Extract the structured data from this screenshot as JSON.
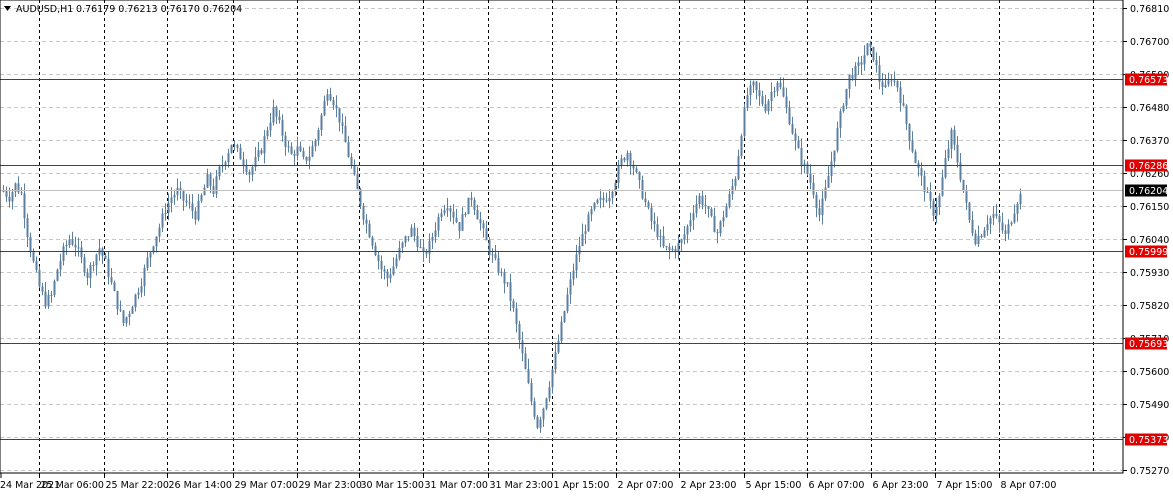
{
  "header": {
    "symbol_timeframe": "AUDUSD,H1",
    "ohlc": "0.76179 0.76213 0.76170 0.76204"
  },
  "colors": {
    "background": "#ffffff",
    "grid": "#c8c8c8",
    "candle": "#5b7fa0",
    "level_line": "#e00000",
    "level_label_bg": "#e00000",
    "price_label_bg": "#000000",
    "bid_line": "#c0c0c0"
  },
  "chart_data": {
    "type": "candlestick",
    "symbol": "AUDUSD",
    "timeframe": "H1",
    "ylim": [
      0.7527,
      0.7681
    ],
    "grid": true,
    "y_ticks": [
      "0.76810",
      "0.76700",
      "0.76590",
      "0.76480",
      "0.76370",
      "0.76260",
      "0.76150",
      "0.76040",
      "0.75930",
      "0.75820",
      "0.75710",
      "0.75600",
      "0.75490",
      "0.75380",
      "0.75270"
    ],
    "x_ticks": [
      "24 Mar 2021",
      "25 Mar 06:00",
      "25 Mar 22:00",
      "26 Mar 14:00",
      "29 Mar 07:00",
      "29 Mar 23:00",
      "30 Mar 15:00",
      "31 Mar 07:00",
      "31 Mar 23:00",
      "1 Apr 15:00",
      "2 Apr 07:00",
      "2 Apr 23:00",
      "5 Apr 15:00",
      "6 Apr 07:00",
      "6 Apr 23:00",
      "7 Apr 15:00",
      "8 Apr 07:00"
    ],
    "horizontal_levels": [
      "0.76573",
      "0.76286",
      "0.75999",
      "0.75693",
      "0.75373"
    ],
    "current_price": "0.76204",
    "path": [
      [
        0,
        0.762
      ],
      [
        2,
        0.7618
      ],
      [
        4,
        0.7622
      ],
      [
        6,
        0.7619
      ],
      [
        8,
        0.7606
      ],
      [
        10,
        0.7596
      ],
      [
        12,
        0.7588
      ],
      [
        14,
        0.7583
      ],
      [
        16,
        0.7585
      ],
      [
        18,
        0.7594
      ],
      [
        20,
        0.76
      ],
      [
        22,
        0.7604
      ],
      [
        24,
        0.7602
      ],
      [
        26,
        0.7597
      ],
      [
        28,
        0.7592
      ],
      [
        30,
        0.7597
      ],
      [
        32,
        0.7601
      ],
      [
        34,
        0.7596
      ],
      [
        36,
        0.7589
      ],
      [
        38,
        0.7582
      ],
      [
        40,
        0.7576
      ],
      [
        42,
        0.758
      ],
      [
        44,
        0.7585
      ],
      [
        46,
        0.759
      ],
      [
        48,
        0.7597
      ],
      [
        50,
        0.7603
      ],
      [
        52,
        0.7608
      ],
      [
        54,
        0.7614
      ],
      [
        56,
        0.7618
      ],
      [
        58,
        0.762
      ],
      [
        60,
        0.7617
      ],
      [
        62,
        0.7615
      ],
      [
        64,
        0.7612
      ],
      [
        66,
        0.7618
      ],
      [
        68,
        0.7624
      ],
      [
        70,
        0.762
      ],
      [
        72,
        0.7627
      ],
      [
        74,
        0.7631
      ],
      [
        76,
        0.7636
      ],
      [
        78,
        0.7633
      ],
      [
        80,
        0.763
      ],
      [
        82,
        0.7626
      ],
      [
        84,
        0.763
      ],
      [
        86,
        0.7634
      ],
      [
        88,
        0.7641
      ],
      [
        90,
        0.7647
      ],
      [
        92,
        0.7642
      ],
      [
        94,
        0.7636
      ],
      [
        96,
        0.7632
      ],
      [
        98,
        0.7634
      ],
      [
        100,
        0.763
      ],
      [
        102,
        0.7632
      ],
      [
        104,
        0.7637
      ],
      [
        106,
        0.7645
      ],
      [
        108,
        0.7654
      ],
      [
        110,
        0.765
      ],
      [
        112,
        0.7644
      ],
      [
        114,
        0.7636
      ],
      [
        116,
        0.7628
      ],
      [
        118,
        0.762
      ],
      [
        120,
        0.7612
      ],
      [
        122,
        0.7606
      ],
      [
        124,
        0.76
      ],
      [
        126,
        0.7594
      ],
      [
        128,
        0.7591
      ],
      [
        130,
        0.7595
      ],
      [
        132,
        0.76
      ],
      [
        134,
        0.7604
      ],
      [
        136,
        0.7607
      ],
      [
        138,
        0.7603
      ],
      [
        140,
        0.7598
      ],
      [
        142,
        0.7602
      ],
      [
        144,
        0.7608
      ],
      [
        146,
        0.7614
      ],
      [
        148,
        0.7616
      ],
      [
        150,
        0.7612
      ],
      [
        152,
        0.7608
      ],
      [
        154,
        0.7614
      ],
      [
        156,
        0.7618
      ],
      [
        158,
        0.7612
      ],
      [
        160,
        0.7606
      ],
      [
        162,
        0.76
      ],
      [
        164,
        0.7596
      ],
      [
        166,
        0.7592
      ],
      [
        168,
        0.7588
      ],
      [
        170,
        0.758
      ],
      [
        172,
        0.757
      ],
      [
        174,
        0.756
      ],
      [
        176,
        0.755
      ],
      [
        178,
        0.7542
      ],
      [
        180,
        0.7548
      ],
      [
        182,
        0.7556
      ],
      [
        184,
        0.7565
      ],
      [
        186,
        0.7575
      ],
      [
        188,
        0.7585
      ],
      [
        190,
        0.7594
      ],
      [
        192,
        0.7602
      ],
      [
        194,
        0.7608
      ],
      [
        196,
        0.7613
      ],
      [
        198,
        0.7616
      ],
      [
        200,
        0.7617
      ],
      [
        202,
        0.7619
      ],
      [
        204,
        0.7624
      ],
      [
        206,
        0.763
      ],
      [
        208,
        0.7633
      ],
      [
        210,
        0.7628
      ],
      [
        212,
        0.7622
      ],
      [
        214,
        0.7616
      ],
      [
        216,
        0.761
      ],
      [
        218,
        0.7606
      ],
      [
        220,
        0.7601
      ],
      [
        222,
        0.76
      ],
      [
        224,
        0.7601
      ],
      [
        226,
        0.7603
      ],
      [
        228,
        0.7608
      ],
      [
        230,
        0.7614
      ],
      [
        232,
        0.7618
      ],
      [
        234,
        0.7615
      ],
      [
        236,
        0.761
      ],
      [
        238,
        0.7606
      ],
      [
        240,
        0.7612
      ],
      [
        242,
        0.7618
      ],
      [
        244,
        0.7625
      ],
      [
        246,
        0.764
      ],
      [
        248,
        0.7652
      ],
      [
        250,
        0.7655
      ],
      [
        252,
        0.7651
      ],
      [
        254,
        0.7648
      ],
      [
        256,
        0.7653
      ],
      [
        258,
        0.7657
      ],
      [
        260,
        0.7651
      ],
      [
        262,
        0.7644
      ],
      [
        264,
        0.7636
      ],
      [
        266,
        0.763
      ],
      [
        268,
        0.7626
      ],
      [
        270,
        0.762
      ],
      [
        272,
        0.7612
      ],
      [
        274,
        0.762
      ],
      [
        276,
        0.763
      ],
      [
        278,
        0.764
      ],
      [
        280,
        0.765
      ],
      [
        282,
        0.7658
      ],
      [
        284,
        0.766
      ],
      [
        286,
        0.7663
      ],
      [
        288,
        0.7668
      ],
      [
        290,
        0.7665
      ],
      [
        292,
        0.7657
      ],
      [
        294,
        0.7654
      ],
      [
        296,
        0.7658
      ],
      [
        298,
        0.7655
      ],
      [
        300,
        0.7647
      ],
      [
        302,
        0.7638
      ],
      [
        304,
        0.763
      ],
      [
        306,
        0.7624
      ],
      [
        308,
        0.7618
      ],
      [
        310,
        0.7613
      ],
      [
        312,
        0.7618
      ],
      [
        314,
        0.763
      ],
      [
        316,
        0.7639
      ],
      [
        318,
        0.763
      ],
      [
        320,
        0.762
      ],
      [
        322,
        0.761
      ],
      [
        324,
        0.7604
      ],
      [
        326,
        0.7606
      ],
      [
        328,
        0.761
      ],
      [
        330,
        0.7612
      ],
      [
        332,
        0.7609
      ],
      [
        334,
        0.7605
      ],
      [
        336,
        0.7611
      ],
      [
        338,
        0.7617
      ],
      [
        340,
        0.762
      ]
    ]
  }
}
